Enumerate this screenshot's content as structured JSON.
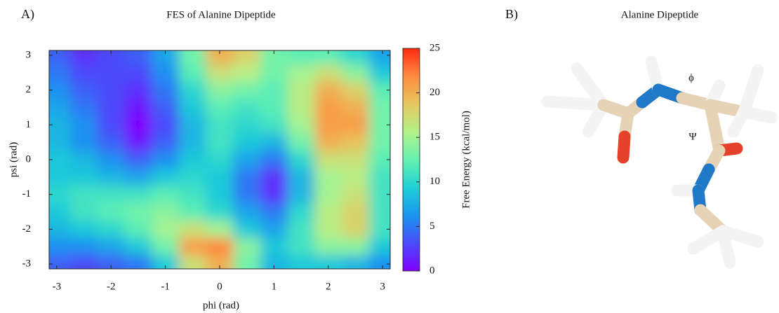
{
  "panel_a_label": "A)",
  "panel_b_label": "B)",
  "molecule_title": "Alanine Dipeptide",
  "phi_symbol": "ϕ",
  "psi_symbol": "Ψ",
  "chart_data": {
    "type": "heatmap",
    "title": "FES of Alanine Dipeptide",
    "x_label": "phi (rad)",
    "y_label": "psi (rad)",
    "colorbar_label": "Free Energy (kcal/mol)",
    "x": [
      -3,
      -2.5,
      -2,
      -1.5,
      -1,
      -0.5,
      0,
      0.5,
      1,
      1.5,
      2,
      2.5,
      3
    ],
    "y": [
      3,
      2.5,
      2,
      1.5,
      1,
      0.5,
      0,
      -0.5,
      -1,
      -1.5,
      -2,
      -2.5,
      -3
    ],
    "z": [
      [
        4,
        2,
        3,
        4,
        7,
        13,
        20,
        18,
        13,
        12,
        12,
        10,
        7
      ],
      [
        5,
        3,
        3,
        3,
        6,
        12,
        17,
        16,
        13,
        15,
        17,
        14,
        9
      ],
      [
        6,
        4,
        3,
        2,
        5,
        10,
        14,
        13,
        12,
        16,
        20,
        18,
        12
      ],
      [
        7,
        5,
        3,
        1,
        4,
        9,
        12,
        11,
        12,
        16,
        21,
        20,
        13
      ],
      [
        8,
        6,
        3,
        0,
        3,
        8,
        11,
        10,
        11,
        15,
        21,
        21,
        13
      ],
      [
        8,
        6,
        4,
        1,
        4,
        8,
        11,
        9,
        8,
        13,
        20,
        19,
        13
      ],
      [
        9,
        8,
        6,
        4,
        6,
        9,
        10,
        7,
        5,
        10,
        17,
        17,
        12
      ],
      [
        9,
        9,
        8,
        7,
        9,
        10,
        9,
        5,
        2,
        8,
        15,
        16,
        11
      ],
      [
        10,
        11,
        11,
        11,
        12,
        11,
        9,
        5,
        2,
        8,
        15,
        17,
        11
      ],
      [
        9,
        11,
        12,
        13,
        14,
        12,
        10,
        7,
        5,
        10,
        16,
        18,
        11
      ],
      [
        8,
        9,
        10,
        12,
        15,
        17,
        15,
        9,
        7,
        11,
        16,
        18,
        11
      ],
      [
        6,
        6,
        7,
        9,
        13,
        21,
        22,
        14,
        9,
        11,
        14,
        14,
        9
      ],
      [
        4,
        3,
        4,
        5,
        9,
        17,
        20,
        13,
        8,
        9,
        9,
        8,
        6
      ]
    ],
    "xlim": [
      -3.14,
      3.14
    ],
    "ylim": [
      -3.14,
      3.14
    ],
    "xticks": [
      -3,
      -2,
      -1,
      0,
      1,
      2,
      3
    ],
    "yticks": [
      -3,
      -2,
      -1,
      0,
      1,
      2,
      3
    ],
    "zlim": [
      0,
      25
    ],
    "zticks": [
      0,
      5,
      10,
      15,
      20,
      25
    ],
    "colormap": [
      "#7f00ff",
      "#4a4cfa",
      "#1996f0",
      "#1fd0d6",
      "#66f2b0",
      "#b3f28a",
      "#e6c760",
      "#ff8c40",
      "#ff2a14"
    ]
  }
}
